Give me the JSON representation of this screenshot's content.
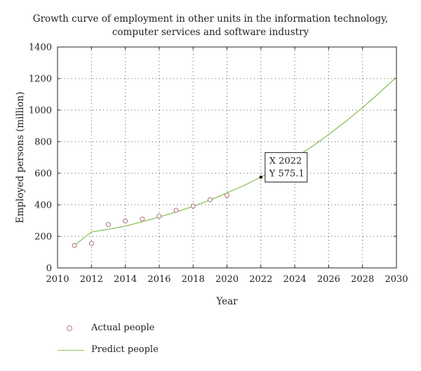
{
  "chart_data": {
    "type": "line",
    "title": [
      "Growth curve of employment in other units in the information technology,",
      "computer services and software industry"
    ],
    "xlabel": "Year",
    "ylabel": "Employed persons (million)",
    "xlim": [
      2010,
      2030
    ],
    "ylim": [
      0,
      1400
    ],
    "xticks": [
      2010,
      2012,
      2014,
      2016,
      2018,
      2020,
      2022,
      2024,
      2026,
      2028,
      2030
    ],
    "yticks": [
      0,
      200,
      400,
      600,
      800,
      1000,
      1200,
      1400
    ],
    "grid": "dotted",
    "legend_position": "bottom-left",
    "series": [
      {
        "name": "Actual people",
        "style": "open-circle-markers",
        "color": "#b07a86",
        "x": [
          2011,
          2012,
          2013,
          2014,
          2015,
          2016,
          2017,
          2018,
          2019,
          2020
        ],
        "y": [
          142,
          155,
          275,
          297,
          310,
          328,
          365,
          392,
          432,
          460
        ]
      },
      {
        "name": "Predict people",
        "style": "line",
        "color": "#8cc25e",
        "x": [
          2011,
          2012,
          2013,
          2014,
          2015,
          2016,
          2017,
          2018,
          2019,
          2020,
          2021,
          2022,
          2023,
          2024,
          2025,
          2026,
          2027,
          2028,
          2029,
          2030
        ],
        "y": [
          142,
          228,
          245,
          265,
          293,
          322,
          355,
          390,
          430,
          475,
          522,
          575.1,
          633,
          698,
          768,
          845,
          928,
          1016,
          1110,
          1210
        ]
      }
    ],
    "annotation": {
      "x": 2022,
      "y": 575.1,
      "lines": [
        "X 2022",
        "Y 575.1"
      ]
    }
  }
}
